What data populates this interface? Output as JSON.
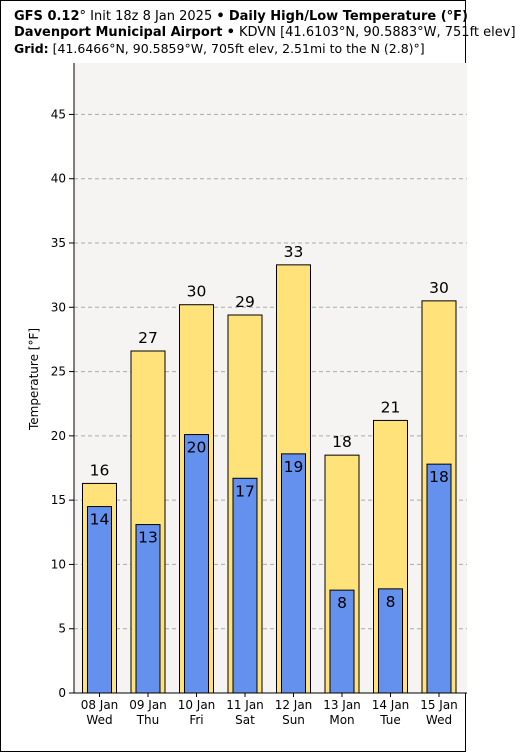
{
  "header": {
    "line1": {
      "model": "GFS 0.12",
      "degree": "°",
      "init": "Init 18z 8 Jan 2025",
      "sep": "•",
      "product": "Daily High/Low Temperature (°F)"
    },
    "line2": {
      "station": "Davenport Municipal Airport",
      "sep": "•",
      "info": "KDVN [41.6103°N, 90.5883°W, 751ft elev]"
    },
    "line3": {
      "label": "Grid:",
      "info": "[41.6466°N, 90.5859°W, 705ft elev, 2.51mi to the N (2.8)°]"
    }
  },
  "chart_data": {
    "type": "bar",
    "title": "Daily High/Low Temperature (°F)",
    "ylabel": "Temperature [°F]",
    "ylim": [
      0,
      49
    ],
    "yticks": [
      0,
      5,
      10,
      15,
      20,
      25,
      30,
      35,
      40,
      45
    ],
    "grid": true,
    "categories": [
      {
        "date": "08 Jan",
        "dow": "Wed"
      },
      {
        "date": "09 Jan",
        "dow": "Thu"
      },
      {
        "date": "10 Jan",
        "dow": "Fri"
      },
      {
        "date": "11 Jan",
        "dow": "Sat"
      },
      {
        "date": "12 Jan",
        "dow": "Sun"
      },
      {
        "date": "13 Jan",
        "dow": "Mon"
      },
      {
        "date": "14 Jan",
        "dow": "Tue"
      },
      {
        "date": "15 Jan",
        "dow": "Wed"
      }
    ],
    "series": [
      {
        "name": "High",
        "color": "#ffe27a",
        "values": [
          16.3,
          26.6,
          30.2,
          29.4,
          33.3,
          18.5,
          21.2,
          30.5
        ],
        "labels": [
          "16",
          "27",
          "30",
          "29",
          "33",
          "18",
          "21",
          "30"
        ]
      },
      {
        "name": "Low",
        "color": "#6491ed",
        "values": [
          14.5,
          13.1,
          20.1,
          16.7,
          18.6,
          8.0,
          8.1,
          17.8
        ],
        "labels": [
          "14",
          "13",
          "20",
          "17",
          "19",
          "8",
          "8",
          "18"
        ]
      }
    ]
  }
}
